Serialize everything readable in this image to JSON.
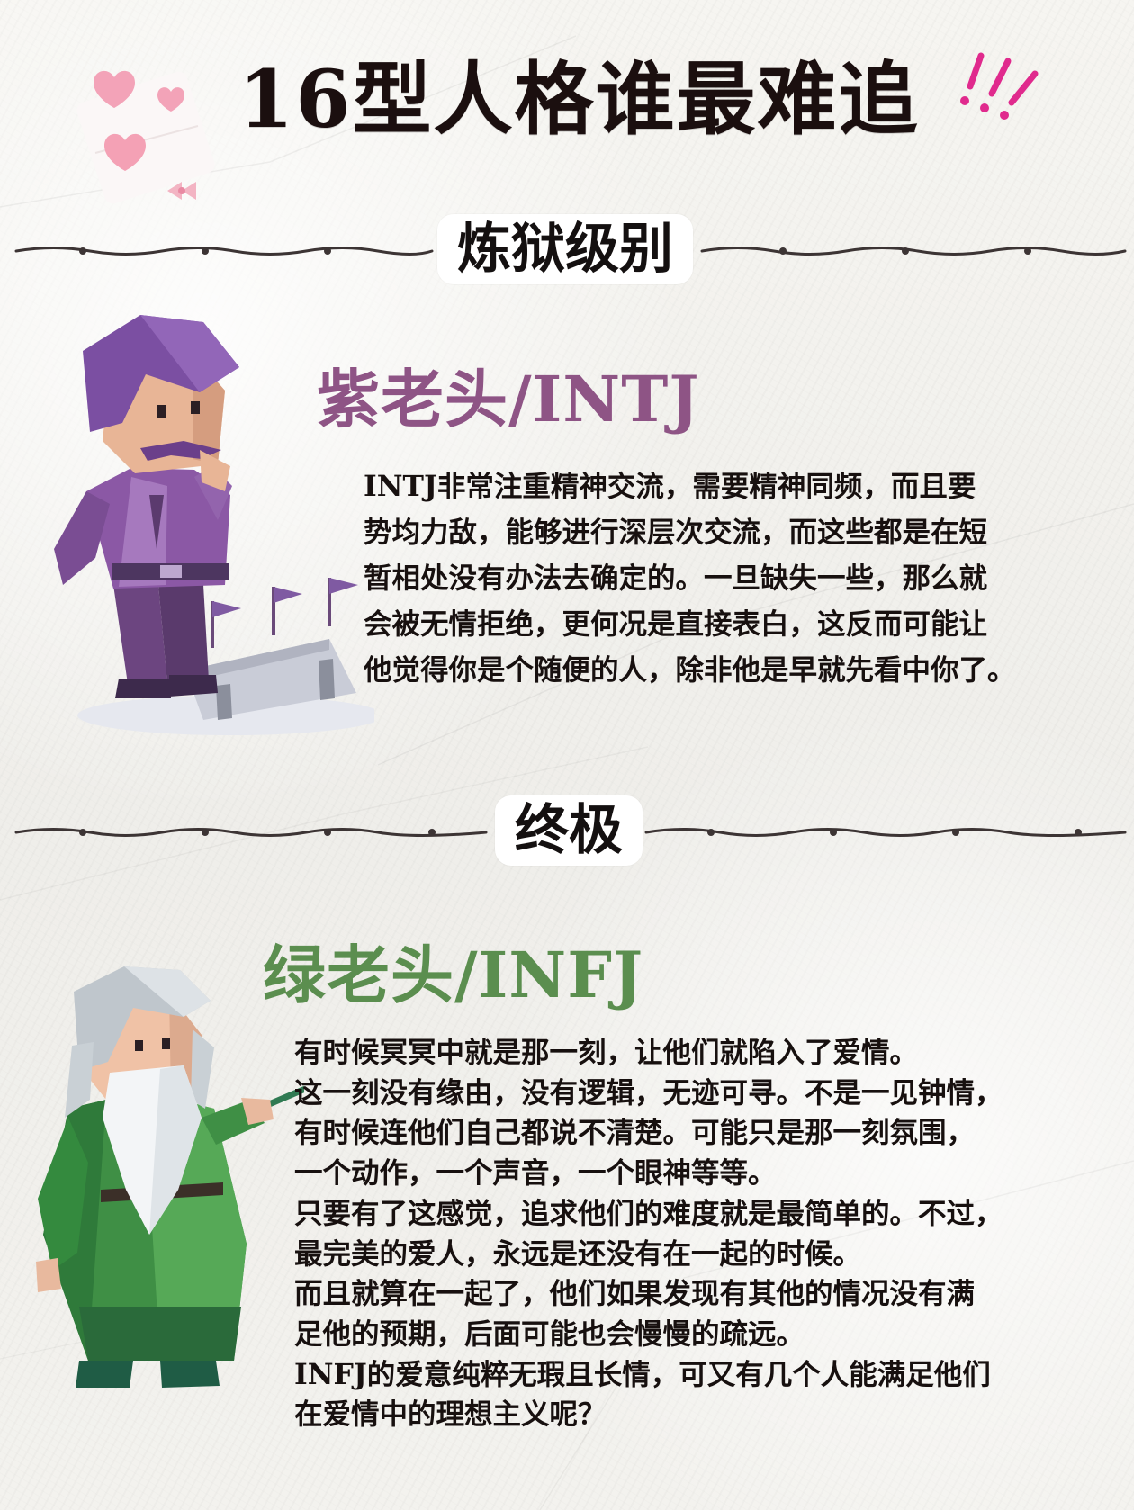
{
  "title": {
    "main": "16型人格谁",
    "highlight": "最难追",
    "highlight_color": "#e9748c"
  },
  "sections": [
    {
      "label": "炼狱级别",
      "character": {
        "name": "紫老头/INTJ",
        "name_color": "#8e5485",
        "icon": "purple-old-man-figure",
        "lines": [
          "INTJ非常注重精神交流，需要精神同频，而且要",
          "势均力敌，能够进行深层次交流，而这些都是在短",
          "暂相处没有办法去确定的。一旦缺失一些，那么就",
          "会被无情拒绝，更何况是直接表白，这反而可能让",
          "他觉得你是个随便的人，除非他是早就先看中你了。"
        ]
      }
    },
    {
      "label": "终极",
      "character": {
        "name": "绿老头/INFJ",
        "name_color": "#5b8e4f",
        "icon": "green-wizard-figure",
        "lines": [
          "有时候冥冥中就是那一刻，让他们就陷入了爱情。",
          "这一刻没有缘由，没有逻辑，无迹可寻。不是一见钟情，",
          "有时候连他们自己都说不清楚。可能只是那一刻氛围，",
          "一个动作，一个声音，一个眼神等等。",
          "只要有了这感觉，追求他们的难度就是最简单的。不过，",
          "最完美的爱人，永远是还没有在一起的时候。",
          "而且就算在一起了，他们如果发现有其他的情况没有满",
          "足他的预期，后面可能也会慢慢的疏远。",
          "INFJ的爱意纯粹无瑕且长情，可又有几个人能满足他们",
          "在爱情中的理想主义呢？"
        ]
      }
    }
  ],
  "decorations": {
    "hearts": "hearts-envelope-icon",
    "exclamation": "exclamation-marks-icon",
    "divider": "rope-divider"
  }
}
